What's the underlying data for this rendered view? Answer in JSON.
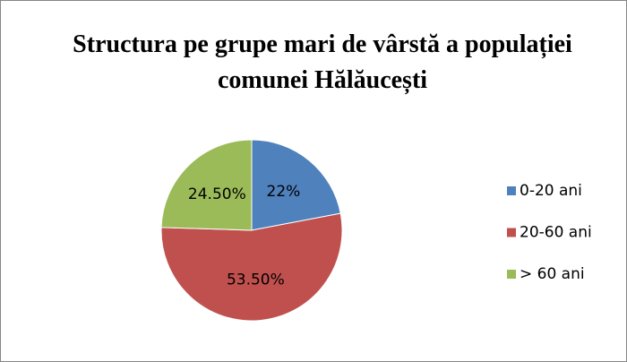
{
  "chart_data": {
    "type": "pie",
    "title": "Structura pe grupe mari de vârstă a populației comunei Hălăucești",
    "categories": [
      "0-20 ani",
      "20-60 ani",
      "> 60 ani"
    ],
    "values": [
      22,
      53.5,
      24.5
    ],
    "value_labels": [
      "22%",
      "53.50%",
      "24.50%"
    ],
    "colors": [
      "#4f81bd",
      "#c0504d",
      "#9bbb59"
    ],
    "legend": "right"
  }
}
